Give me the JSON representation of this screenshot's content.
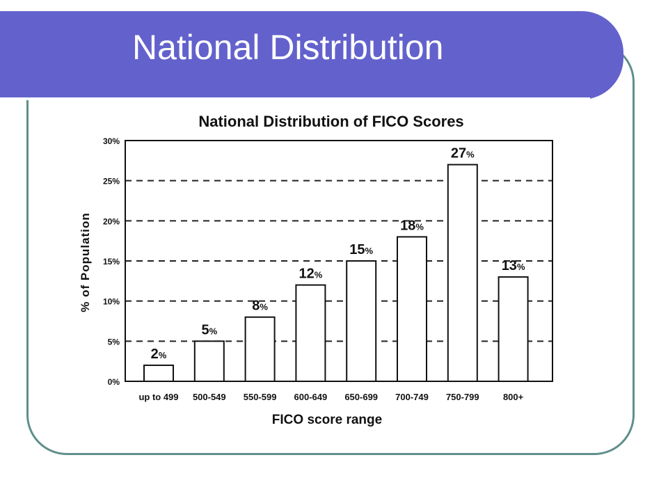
{
  "slide": {
    "title": "National Distribution"
  },
  "chart_data": {
    "type": "bar",
    "title": "National Distribution of FICO Scores",
    "xlabel": "FICO score range",
    "ylabel": "% of Population",
    "categories": [
      "up to 499",
      "500-549",
      "550-599",
      "600-649",
      "650-699",
      "700-749",
      "750-799",
      "800+"
    ],
    "values": [
      2,
      5,
      8,
      12,
      15,
      18,
      27,
      13
    ],
    "value_labels": [
      "2",
      "5",
      "8",
      "12",
      "15",
      "18",
      "27",
      "13"
    ],
    "value_suffix": "%",
    "ylim": [
      0,
      30
    ],
    "yticks": [
      0,
      5,
      10,
      15,
      20,
      25,
      30
    ],
    "ytick_labels": [
      "0%",
      "5%",
      "10%",
      "15%",
      "20%",
      "25%",
      "30%"
    ],
    "grid": "dashed horizontal",
    "colors": {
      "bar_fill": "#ffffff",
      "bar_edge": "#111111",
      "grid": "#222222"
    }
  }
}
